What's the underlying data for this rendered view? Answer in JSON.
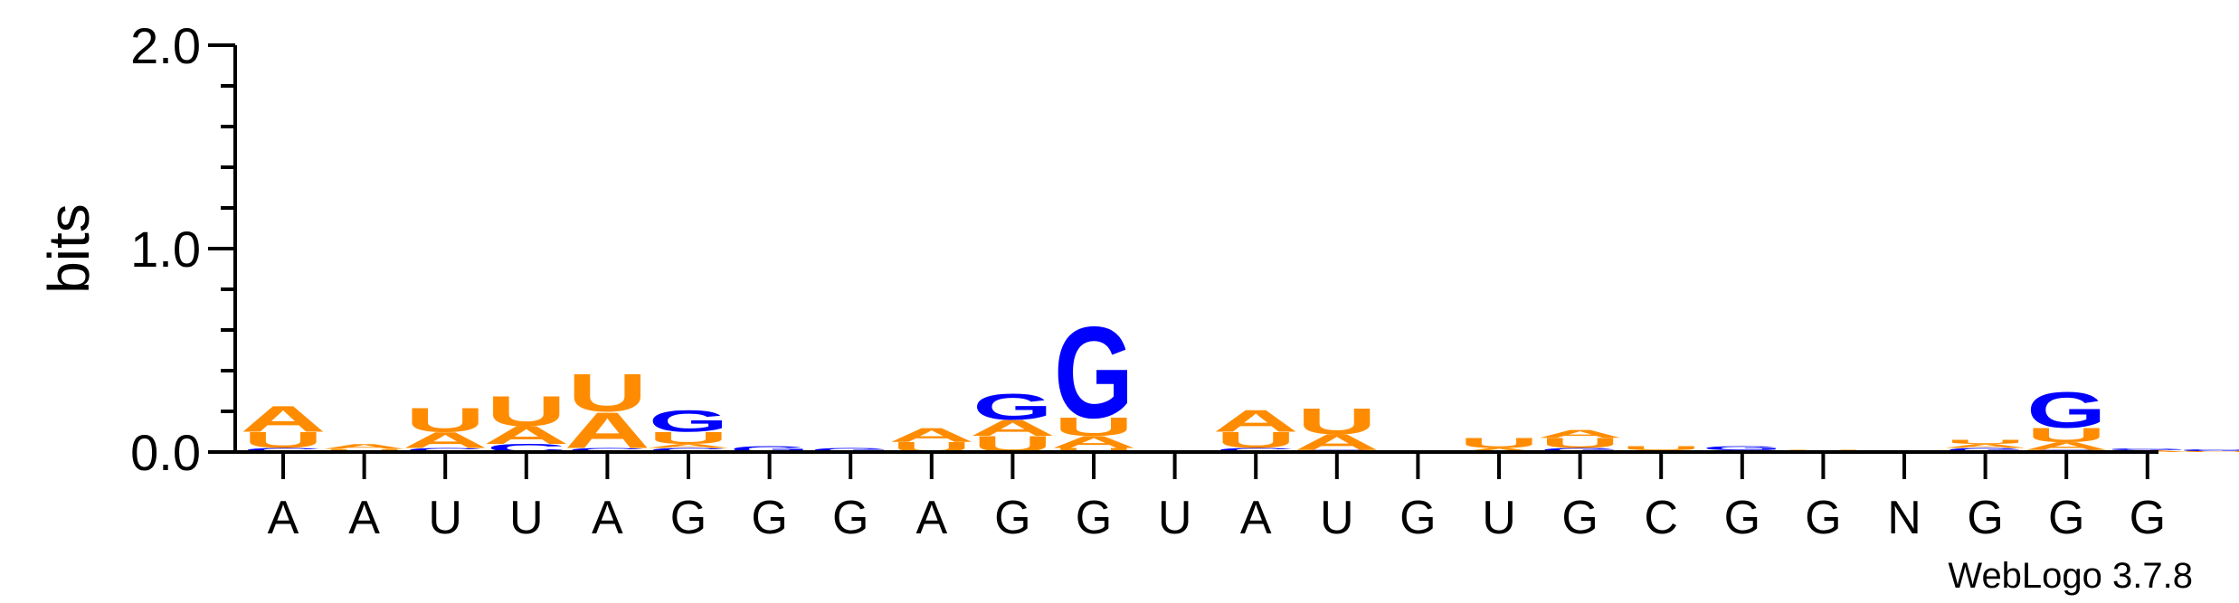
{
  "chart_data": {
    "type": "sequence_logo",
    "ylabel": "bits",
    "ylim": [
      0,
      2.0
    ],
    "yticks": [
      "0.0",
      "1.0",
      "2.0"
    ],
    "ytick_values": [
      0,
      1.0,
      2.0
    ],
    "credit": "WebLogo 3.7.8",
    "colors": {
      "A": "#ff8c00",
      "U": "#ff8c00",
      "G": "#0000ff",
      "C": "#0000ff"
    },
    "positions": [
      {
        "label": "A",
        "stack": [
          {
            "letter": "C",
            "height": 0.02
          },
          {
            "letter": "U",
            "height": 0.08
          },
          {
            "letter": "A",
            "height": 0.13
          }
        ]
      },
      {
        "label": "A",
        "stack": [
          {
            "letter": "U",
            "height": 0.015
          },
          {
            "letter": "A",
            "height": 0.025
          }
        ]
      },
      {
        "label": "U",
        "stack": [
          {
            "letter": "C",
            "height": 0.02
          },
          {
            "letter": "A",
            "height": 0.08
          },
          {
            "letter": "U",
            "height": 0.12
          }
        ]
      },
      {
        "label": "U",
        "stack": [
          {
            "letter": "C",
            "height": 0.04
          },
          {
            "letter": "A",
            "height": 0.09
          },
          {
            "letter": "U",
            "height": 0.15
          }
        ]
      },
      {
        "label": "A",
        "stack": [
          {
            "letter": "C",
            "height": 0.02
          },
          {
            "letter": "A",
            "height": 0.18
          },
          {
            "letter": "U",
            "height": 0.19
          }
        ]
      },
      {
        "label": "G",
        "stack": [
          {
            "letter": "C",
            "height": 0.02
          },
          {
            "letter": "A",
            "height": 0.02
          },
          {
            "letter": "U",
            "height": 0.06
          },
          {
            "letter": "G",
            "height": 0.11
          }
        ]
      },
      {
        "label": "G",
        "stack": [
          {
            "letter": "G",
            "height": 0.03
          }
        ]
      },
      {
        "label": "G",
        "stack": [
          {
            "letter": "G",
            "height": 0.02
          }
        ]
      },
      {
        "label": "A",
        "stack": [
          {
            "letter": "U",
            "height": 0.05
          },
          {
            "letter": "A",
            "height": 0.07
          }
        ]
      },
      {
        "label": "G",
        "stack": [
          {
            "letter": "U",
            "height": 0.08
          },
          {
            "letter": "A",
            "height": 0.08
          },
          {
            "letter": "G",
            "height": 0.13
          }
        ]
      },
      {
        "label": "G",
        "stack": [
          {
            "letter": "U",
            "height": 0.02
          },
          {
            "letter": "A",
            "height": 0.06
          },
          {
            "letter": "U",
            "height": 0.09
          },
          {
            "letter": "G",
            "height": 0.46
          }
        ]
      },
      {
        "label": "U",
        "stack": []
      },
      {
        "label": "A",
        "stack": [
          {
            "letter": "C",
            "height": 0.02
          },
          {
            "letter": "U",
            "height": 0.08
          },
          {
            "letter": "A",
            "height": 0.11
          }
        ]
      },
      {
        "label": "U",
        "stack": [
          {
            "letter": "C",
            "height": 0.01
          },
          {
            "letter": "A",
            "height": 0.08
          },
          {
            "letter": "U",
            "height": 0.13
          }
        ]
      },
      {
        "label": "G",
        "stack": []
      },
      {
        "label": "U",
        "stack": [
          {
            "letter": "A",
            "height": 0.02
          },
          {
            "letter": "U",
            "height": 0.05
          }
        ]
      },
      {
        "label": "G",
        "stack": [
          {
            "letter": "G",
            "height": 0.02
          },
          {
            "letter": "U",
            "height": 0.05
          },
          {
            "letter": "A",
            "height": 0.04
          }
        ]
      },
      {
        "label": "C",
        "stack": [
          {
            "letter": "A",
            "height": 0.01
          },
          {
            "letter": "U",
            "height": 0.02
          }
        ]
      },
      {
        "label": "G",
        "stack": [
          {
            "letter": "A",
            "height": 0.01
          },
          {
            "letter": "G",
            "height": 0.02
          }
        ]
      },
      {
        "label": "G",
        "stack": [
          {
            "letter": "U",
            "height": 0.01
          }
        ]
      },
      {
        "label": "N",
        "stack": []
      },
      {
        "label": "G",
        "stack": [
          {
            "letter": "G",
            "height": 0.02
          },
          {
            "letter": "A",
            "height": 0.02
          },
          {
            "letter": "U",
            "height": 0.02
          }
        ]
      },
      {
        "label": "G",
        "stack": [
          {
            "letter": "C",
            "height": 0.01
          },
          {
            "letter": "A",
            "height": 0.04
          },
          {
            "letter": "U",
            "height": 0.07
          },
          {
            "letter": "G",
            "height": 0.18
          }
        ]
      },
      {
        "label": "G",
        "stack": [
          {
            "letter": "A",
            "height": 0.01
          },
          {
            "letter": "G",
            "height": 0.01
          }
        ]
      }
    ],
    "trailing_stack": [
      {
        "letter": "U",
        "height": 0.005
      },
      {
        "letter": "G",
        "height": 0.01
      }
    ]
  }
}
